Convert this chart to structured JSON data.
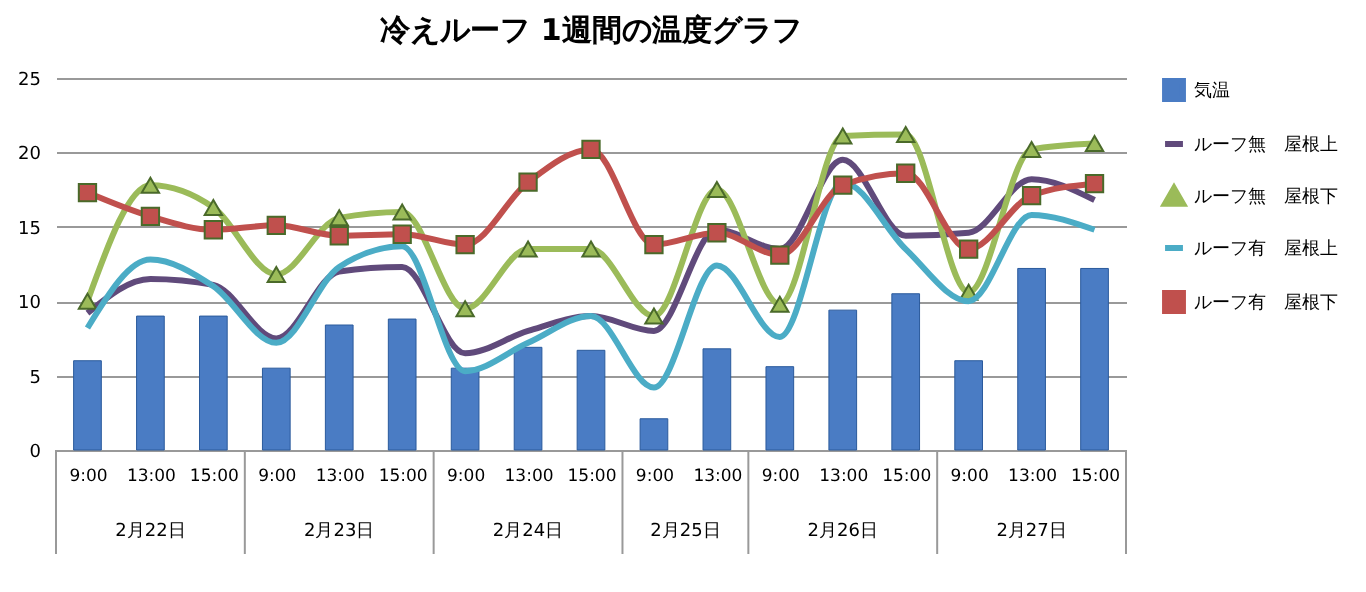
{
  "chart_data": {
    "type": "line",
    "title": "冷えルーフ  1週間の温度グラフ",
    "categories": [
      "9:00",
      "13:00",
      "15:00",
      "9:00",
      "13:00",
      "15:00",
      "9:00",
      "13:00",
      "15:00",
      "9:00",
      "13:00",
      "9:00",
      "13:00",
      "15:00",
      "9:00",
      "13:00",
      "15:00"
    ],
    "annotations": [
      "2月22日",
      "2月23日",
      "2月24日",
      "2月25日",
      "2月26日",
      "2月27日"
    ],
    "series": [
      {
        "name": "気温",
        "type": "bar",
        "color": "#4a7cc4",
        "values": [
          6,
          9,
          9,
          5.5,
          8.4,
          8.8,
          5.5,
          6.9,
          6.7,
          2.1,
          6.8,
          5.6,
          9.4,
          10.5,
          6,
          12.2,
          12.2
        ]
      },
      {
        "name": "ルーフ無　屋根上",
        "color": "#604a7b",
        "marker": "none",
        "values": [
          9.2,
          11.5,
          11.1,
          7.5,
          12,
          12.3,
          6.5,
          8,
          9,
          8,
          14.8,
          13.5,
          19.5,
          14.4,
          14.6,
          18.2,
          16.8
        ]
      },
      {
        "name": "ルーフ無　屋根下",
        "color": "#9bbb59",
        "marker": "triangle",
        "values": [
          10,
          17.8,
          16.3,
          11.8,
          15.6,
          16,
          9.5,
          13.5,
          13.5,
          9,
          17.5,
          9.8,
          21.1,
          21.2,
          10.6,
          20.2,
          20.6
        ]
      },
      {
        "name": "ルーフ有　屋根上",
        "color": "#4bacc6",
        "marker": "none",
        "values": [
          8.2,
          12.8,
          11,
          7.2,
          12.3,
          13.7,
          5.3,
          7.2,
          9,
          4.2,
          12.4,
          7.6,
          18,
          13.5,
          10,
          15.8,
          14.8
        ]
      },
      {
        "name": "ルーフ有　屋根下",
        "color": "#c0504d",
        "marker": "square",
        "values": [
          17.3,
          15.7,
          14.8,
          15.1,
          14.4,
          14.5,
          13.8,
          18,
          20.2,
          13.8,
          14.6,
          13.1,
          17.8,
          18.6,
          13.5,
          17.1,
          17.9
        ]
      }
    ],
    "ylim": [
      0,
      25
    ],
    "yticks": [
      0,
      5,
      10,
      15,
      20,
      25
    ],
    "grid": "y",
    "legend": "right"
  }
}
